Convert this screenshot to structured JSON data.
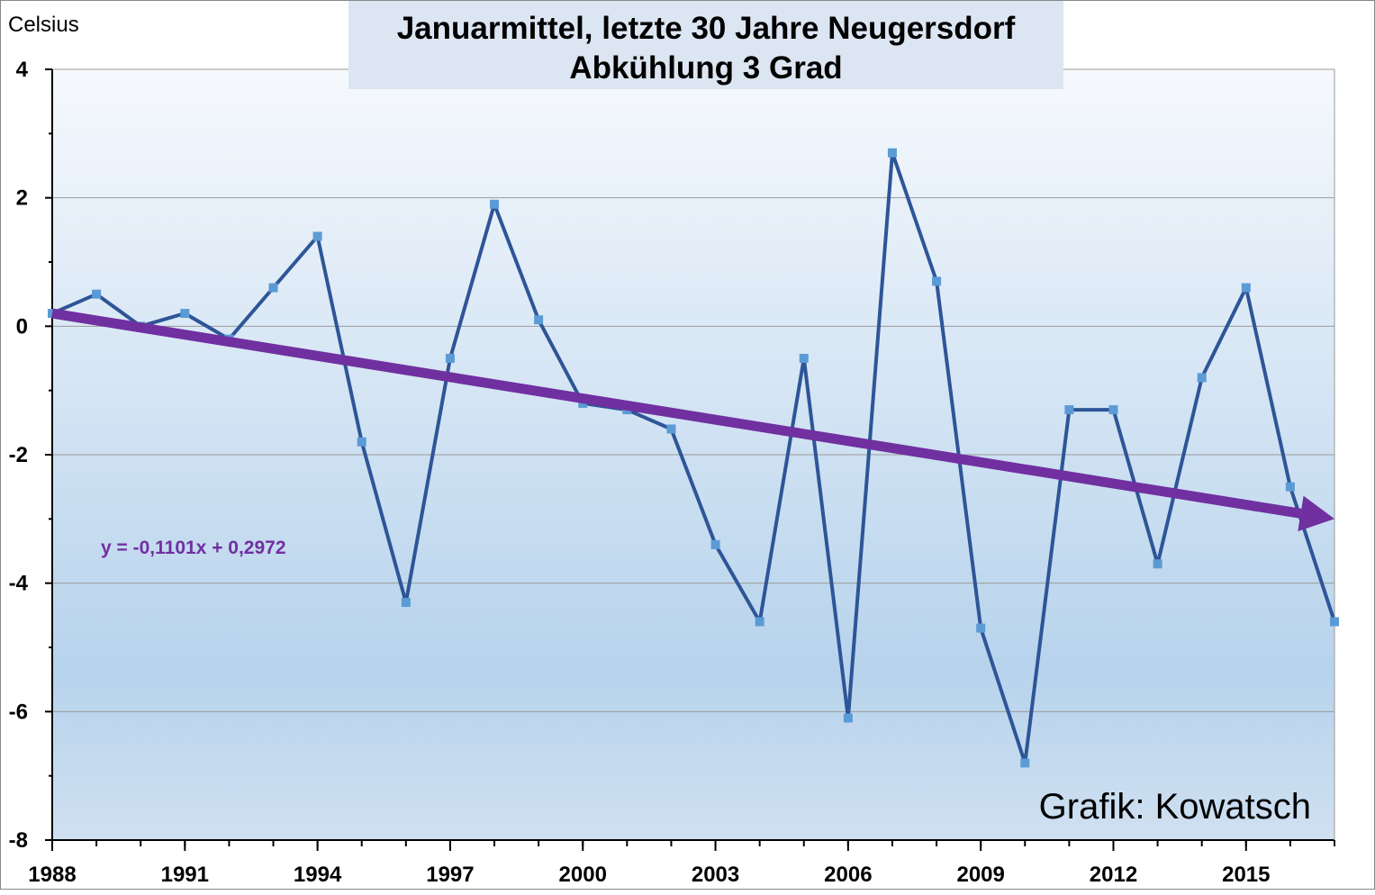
{
  "chart_data": {
    "type": "line",
    "title_line1": "Januarmittel, letzte 30 Jahre Neugersdorf",
    "title_line2": "Abkühlung 3 Grad",
    "ylabel": "Celsius",
    "xlabel": "",
    "ylim": [
      -8,
      4
    ],
    "xlim": [
      1988,
      2017
    ],
    "yticks": [
      4,
      2,
      0,
      -2,
      -4,
      -6,
      -8
    ],
    "ytick_labels": [
      "4",
      "2",
      "0",
      "-2",
      "-4",
      "-6",
      "-8"
    ],
    "xticks": [
      1988,
      1991,
      1994,
      1997,
      2000,
      2003,
      2006,
      2009,
      2012,
      2015
    ],
    "xtick_labels": [
      "1988",
      "1991",
      "1994",
      "1997",
      "2000",
      "2003",
      "2006",
      "2009",
      "2012",
      "2015"
    ],
    "grid": true,
    "series": [
      {
        "name": "Januarmittel",
        "color": "#2e5597",
        "marker_color": "#5b9bd5",
        "x": [
          1988,
          1989,
          1990,
          1991,
          1992,
          1993,
          1994,
          1995,
          1996,
          1997,
          1998,
          1999,
          2000,
          2001,
          2002,
          2003,
          2004,
          2005,
          2006,
          2007,
          2008,
          2009,
          2010,
          2011,
          2012,
          2013,
          2014,
          2015,
          2016,
          2017
        ],
        "values": [
          0.2,
          0.5,
          0.0,
          0.2,
          -0.2,
          0.6,
          1.4,
          -1.8,
          -4.3,
          -0.5,
          1.9,
          0.1,
          -1.2,
          -1.3,
          -1.6,
          -3.4,
          -4.6,
          -0.5,
          -6.1,
          2.7,
          0.7,
          -4.7,
          -6.8,
          -1.3,
          -1.3,
          -3.7,
          -0.8,
          0.6,
          -2.5,
          -4.6
        ]
      }
    ],
    "trendline": {
      "equation": "y = -0,1101x + 0,2972",
      "color": "#7030a0",
      "start": {
        "x": 1988,
        "y": 0.2
      },
      "end": {
        "x": 2017,
        "y": -3.0
      }
    },
    "annotation": "Grafik: Kowatsch",
    "colors": {
      "plot_bg_top": "#f6f9fd",
      "plot_bg_bottom": "#b7d3ec",
      "title_bg": "#dce6f2",
      "grid": "#9a9a9a",
      "axis": "#000000"
    }
  }
}
